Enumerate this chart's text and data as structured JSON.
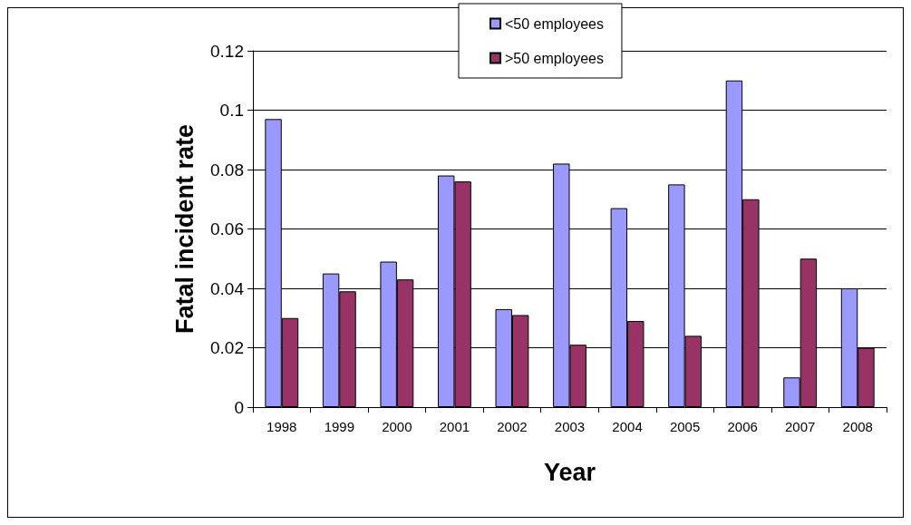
{
  "chart_data": {
    "type": "bar",
    "xlabel": "Year",
    "ylabel": "Fatal incident rate",
    "categories": [
      "1998",
      "1999",
      "2000",
      "2001",
      "2002",
      "2003",
      "2004",
      "2005",
      "2006",
      "2007",
      "2008"
    ],
    "series": [
      {
        "name": "<50 employees",
        "color": "#9999ff",
        "values": [
          0.097,
          0.045,
          0.049,
          0.078,
          0.033,
          0.082,
          0.067,
          0.075,
          0.11,
          0.01,
          0.04
        ]
      },
      {
        "name": ">50 employees",
        "color": "#993366",
        "values": [
          0.03,
          0.039,
          0.043,
          0.076,
          0.031,
          0.021,
          0.029,
          0.024,
          0.07,
          0.05,
          0.02
        ]
      }
    ],
    "ylim": [
      0,
      0.12
    ],
    "yticks": [
      0,
      0.02,
      0.04,
      0.06,
      0.08,
      0.1,
      0.12
    ],
    "grid": "y",
    "legend": "top"
  }
}
